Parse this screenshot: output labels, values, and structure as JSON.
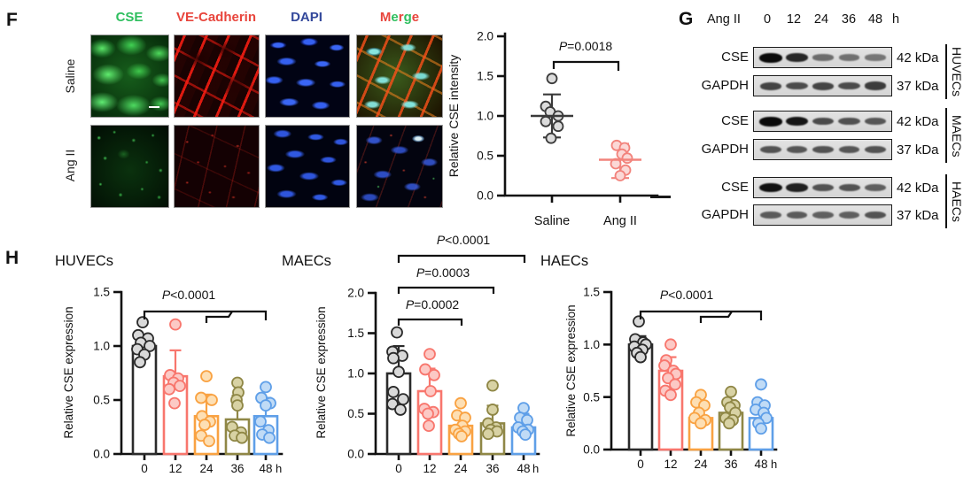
{
  "panel_f": {
    "label": "F",
    "channel_labels": [
      {
        "text": "CSE",
        "color": "#2fbf5f"
      },
      {
        "text": "VE-Cadherin",
        "color": "#e8453c"
      },
      {
        "text": "DAPI",
        "color": "#33489b"
      }
    ],
    "merge_label": {
      "letters": [
        {
          "ch": "M",
          "color": "#e8453c"
        },
        {
          "ch": "e",
          "color": "#2fbf5f"
        },
        {
          "ch": "r",
          "color": "#e8453c"
        },
        {
          "ch": "g",
          "color": "#2fbf5f"
        },
        {
          "ch": "e",
          "color": "#e8453c"
        }
      ]
    },
    "row_labels": [
      "Saline",
      "Ang II"
    ]
  },
  "panel_g": {
    "label": "G",
    "header": {
      "treatment": "Ang II",
      "timepoints": [
        "0",
        "12",
        "24",
        "36",
        "48"
      ],
      "unit": "h"
    },
    "groups": [
      {
        "cell": "HUVECs",
        "rows": [
          {
            "protein": "CSE",
            "size": "42 kDa",
            "bands": [
              1.0,
              0.8,
              0.32,
              0.3,
              0.26
            ]
          },
          {
            "protein": "GAPDH",
            "size": "37 kDa",
            "bands": [
              0.6,
              0.55,
              0.6,
              0.55,
              0.65
            ]
          }
        ]
      },
      {
        "cell": "MAECs",
        "rows": [
          {
            "protein": "CSE",
            "size": "42 kDa",
            "bands": [
              1.0,
              0.92,
              0.55,
              0.52,
              0.48
            ]
          },
          {
            "protein": "GAPDH",
            "size": "37 kDa",
            "bands": [
              0.5,
              0.48,
              0.5,
              0.48,
              0.5
            ]
          }
        ]
      },
      {
        "cell": "HAECs",
        "rows": [
          {
            "protein": "CSE",
            "size": "42 kDa",
            "bands": [
              0.95,
              0.85,
              0.5,
              0.5,
              0.42
            ]
          },
          {
            "protein": "GAPDH",
            "size": "37 kDa",
            "bands": [
              0.45,
              0.45,
              0.42,
              0.42,
              0.5
            ]
          }
        ]
      }
    ]
  },
  "panel_h": {
    "label": "H"
  },
  "chart_data": [
    {
      "id": "f_scatter",
      "type": "scatter",
      "ylabel": "Relative CSE intensity",
      "ylim": [
        0,
        2
      ],
      "yticks": [
        "0.0",
        "0.5",
        "1.0",
        "1.5",
        "2.0"
      ],
      "categories": [
        "Saline",
        "Ang II"
      ],
      "series": [
        {
          "name": "Saline",
          "color": "#3a3a3a",
          "fill": "#dcdcdc",
          "values": [
            1.47,
            1.12,
            1.05,
            1.0,
            0.93,
            0.87,
            0.72
          ],
          "dx": [
            0,
            -7,
            -2,
            7,
            -7,
            7,
            -1
          ],
          "mean": 1.0,
          "sd_top": 1.27,
          "sd_bot": 0.73
        },
        {
          "name": "Ang II",
          "color": "#f2837c",
          "fill": "#fbd8d6",
          "values": [
            0.63,
            0.6,
            0.52,
            0.47,
            0.4,
            0.32,
            0.25
          ],
          "dx": [
            -4,
            5,
            2,
            8,
            -5,
            6,
            0
          ],
          "mean": 0.45,
          "sd_top": 0.65,
          "sd_bot": 0.22
        }
      ],
      "pvalue": "P=0.0018"
    },
    {
      "id": "huvecs",
      "type": "bar",
      "title": "HUVECs",
      "ylabel": "Relative CSE expression",
      "ylim": [
        0,
        1.5
      ],
      "yticks": [
        "0.0",
        "0.5",
        "1.0",
        "1.5"
      ],
      "categories": [
        "0",
        "12",
        "24",
        "36",
        "48"
      ],
      "xunit": "h",
      "series": [
        {
          "x": "0",
          "bar": 1.0,
          "err": 0.1,
          "color": "#2b2b2b",
          "dot_fill": "#d9d9d9",
          "values": [
            1.22,
            1.1,
            1.07,
            1.03,
            1.0,
            0.97,
            0.92,
            0.85
          ],
          "dx": [
            -2,
            -7,
            4,
            -4,
            6,
            -8,
            0,
            -5
          ]
        },
        {
          "x": "12",
          "bar": 0.72,
          "err": 0.24,
          "color": "#f8766d",
          "dot_fill": "#fcc9c5",
          "values": [
            1.2,
            0.73,
            0.7,
            0.66,
            0.63,
            0.6,
            0.47
          ],
          "dx": [
            0,
            -6,
            3,
            -2,
            5,
            -7,
            -1
          ]
        },
        {
          "x": "24",
          "bar": 0.35,
          "err": 0.2,
          "color": "#f9a242",
          "dot_fill": "#fddfb4",
          "values": [
            0.72,
            0.52,
            0.5,
            0.35,
            0.3,
            0.27,
            0.17,
            0.12
          ],
          "dx": [
            0,
            -6,
            6,
            -5,
            4,
            -2,
            -6,
            3
          ]
        },
        {
          "x": "36",
          "bar": 0.32,
          "err": 0.22,
          "color": "#8f8746",
          "dot_fill": "#d8d2a4",
          "values": [
            0.66,
            0.57,
            0.5,
            0.45,
            0.25,
            0.2,
            0.17,
            0.15
          ],
          "dx": [
            0,
            1,
            -1,
            0,
            -6,
            4,
            -3,
            5
          ]
        },
        {
          "x": "48",
          "bar": 0.35,
          "err": 0.17,
          "color": "#5f9fe8",
          "dot_fill": "#c0dbf6",
          "values": [
            0.62,
            0.52,
            0.47,
            0.45,
            0.3,
            0.22,
            0.18,
            0.15
          ],
          "dx": [
            0,
            -5,
            5,
            0,
            -6,
            3,
            -4,
            4
          ]
        }
      ],
      "pvalues": [
        {
          "text": "P<0.0001",
          "style": "pooled"
        }
      ]
    },
    {
      "id": "maecs",
      "type": "bar",
      "title": "MAECs",
      "ylabel": "Relative CSE expression",
      "ylim": [
        0,
        2
      ],
      "yticks": [
        "0.0",
        "0.5",
        "1.0",
        "1.5",
        "2.0"
      ],
      "categories": [
        "0",
        "12",
        "24",
        "36",
        "48"
      ],
      "xunit": "h",
      "series": [
        {
          "x": "0",
          "bar": 1.0,
          "err": 0.34,
          "color": "#2b2b2b",
          "dot_fill": "#d9d9d9",
          "values": [
            1.51,
            1.27,
            1.22,
            1.19,
            1.02,
            0.77,
            0.68,
            0.62,
            0.55
          ],
          "dx": [
            -2,
            -7,
            4,
            -6,
            0,
            -6,
            5,
            -7,
            2
          ]
        },
        {
          "x": "12",
          "bar": 0.78,
          "err": 0.28,
          "color": "#f8766d",
          "dot_fill": "#fcc9c5",
          "values": [
            1.24,
            1.05,
            0.98,
            0.78,
            0.56,
            0.52,
            0.5,
            0.35
          ],
          "dx": [
            0,
            -5,
            5,
            1,
            -6,
            4,
            -2,
            -1
          ]
        },
        {
          "x": "24",
          "bar": 0.35,
          "err": 0.15,
          "color": "#f9a242",
          "dot_fill": "#fddfb4",
          "values": [
            0.63,
            0.48,
            0.45,
            0.35,
            0.3,
            0.28,
            0.25,
            0.22
          ],
          "dx": [
            0,
            -4,
            5,
            2,
            -6,
            5,
            -2,
            1
          ]
        },
        {
          "x": "36",
          "bar": 0.38,
          "err": 0.22,
          "color": "#8f8746",
          "dot_fill": "#d8d2a4",
          "values": [
            0.85,
            0.55,
            0.38,
            0.33,
            0.3,
            0.28,
            0.25
          ],
          "dx": [
            0,
            0,
            -5,
            4,
            -2,
            5,
            -5
          ]
        },
        {
          "x": "48",
          "bar": 0.33,
          "err": 0.17,
          "color": "#5f9fe8",
          "dot_fill": "#c0dbf6",
          "values": [
            0.57,
            0.45,
            0.42,
            0.33,
            0.3,
            0.28,
            0.24
          ],
          "dx": [
            0,
            -4,
            4,
            -6,
            5,
            -1,
            2
          ]
        }
      ],
      "pvalues": [
        {
          "text": "P=0.0002"
        },
        {
          "text": "P=0.0003"
        },
        {
          "text": "P<0.0001"
        }
      ]
    },
    {
      "id": "haecs",
      "type": "bar",
      "title": "HAECs",
      "ylabel": "Relative CSE expression",
      "ylim": [
        0,
        1.5
      ],
      "yticks": [
        "0.0",
        "0.5",
        "1.0",
        "1.5"
      ],
      "categories": [
        "0",
        "12",
        "24",
        "36",
        "48"
      ],
      "xunit": "h",
      "series": [
        {
          "x": "0",
          "bar": 1.0,
          "err": 0.08,
          "color": "#2b2b2b",
          "dot_fill": "#d9d9d9",
          "values": [
            1.22,
            1.05,
            1.02,
            1.0,
            0.98,
            0.95,
            0.92,
            0.88
          ],
          "dx": [
            -2,
            -6,
            3,
            6,
            -7,
            2,
            -4,
            0
          ]
        },
        {
          "x": "12",
          "bar": 0.75,
          "err": 0.13,
          "color": "#f8766d",
          "dot_fill": "#fcc9c5",
          "values": [
            1.0,
            0.85,
            0.8,
            0.75,
            0.72,
            0.68,
            0.62,
            0.56,
            0.52
          ],
          "dx": [
            0,
            -5,
            -7,
            3,
            6,
            -3,
            5,
            -6,
            0
          ]
        },
        {
          "x": "24",
          "bar": 0.3,
          "err": 0.1,
          "color": "#f9a242",
          "dot_fill": "#fddfb4",
          "values": [
            0.52,
            0.45,
            0.42,
            0.35,
            0.3,
            0.28,
            0.25
          ],
          "dx": [
            0,
            -5,
            4,
            -2,
            -7,
            5,
            0
          ]
        },
        {
          "x": "36",
          "bar": 0.35,
          "err": 0.12,
          "color": "#8f8746",
          "dot_fill": "#d8d2a4",
          "values": [
            0.55,
            0.45,
            0.42,
            0.4,
            0.35,
            0.3,
            0.28,
            0.25
          ],
          "dx": [
            0,
            -4,
            4,
            -1,
            5,
            -6,
            2,
            -2
          ]
        },
        {
          "x": "48",
          "bar": 0.3,
          "err": 0.13,
          "color": "#5f9fe8",
          "dot_fill": "#c0dbf6",
          "values": [
            0.62,
            0.45,
            0.42,
            0.38,
            0.35,
            0.3,
            0.25,
            0.2
          ],
          "dx": [
            0,
            -4,
            4,
            -6,
            3,
            6,
            -3,
            0
          ]
        }
      ],
      "pvalues": [
        {
          "text": "P<0.0001",
          "style": "pooled"
        }
      ]
    }
  ]
}
